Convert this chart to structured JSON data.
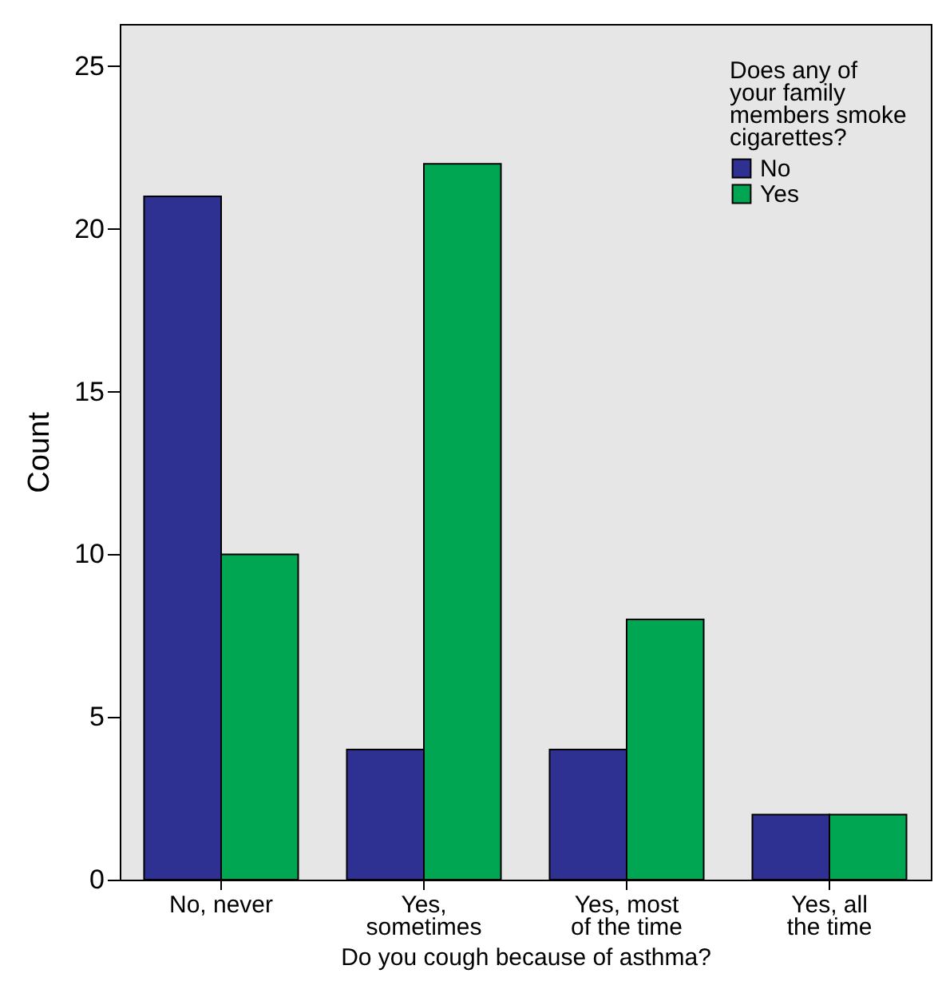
{
  "chart_data": {
    "type": "bar",
    "xlabel": "Do you cough because of asthma?",
    "ylabel": "Count",
    "legend_title": "Does any of your family members smoke cigarettes?",
    "categories": [
      "No, never",
      "Yes, sometimes",
      "Yes, most of the time",
      "Yes, all the time"
    ],
    "series": [
      {
        "name": "No",
        "color": "#2e3192",
        "values": [
          21,
          4,
          4,
          2
        ]
      },
      {
        "name": "Yes",
        "color": "#00a651",
        "values": [
          10,
          22,
          8,
          2
        ]
      }
    ],
    "ylim": [
      0,
      26.3
    ],
    "yticks": [
      0,
      5,
      10,
      15,
      20,
      25
    ],
    "grid": false,
    "legend": "top right"
  }
}
